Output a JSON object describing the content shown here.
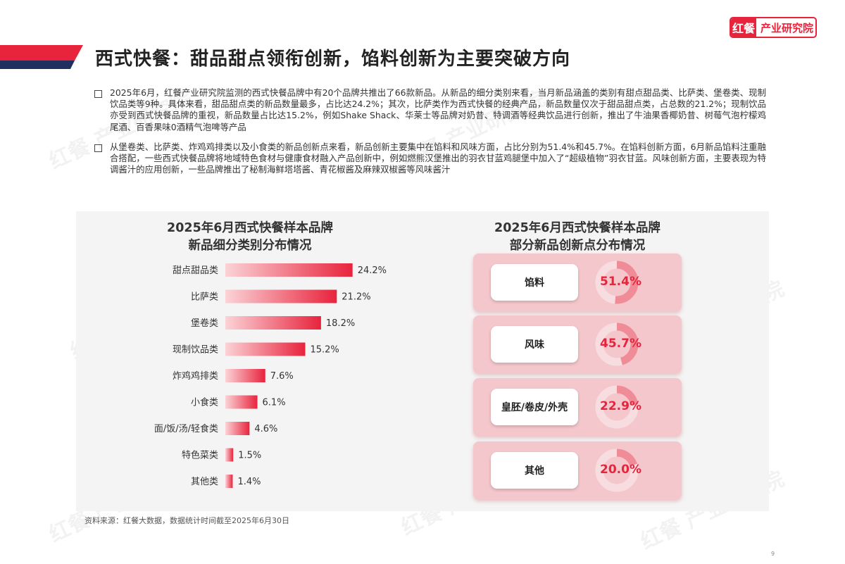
{
  "logo": {
    "mark": "红餐",
    "text": "产业研究院"
  },
  "title": "西式快餐：甜品甜点领衔创新，馅料创新为主要突破方向",
  "bullets": [
    "2025年6月，红餐产业研究院监测的西式快餐品牌中有20个品牌共推出了66款新品。从新品的细分类别来看，当月新品涵盖的类别有甜点甜品类、比萨类、堡卷类、现制饮品类等9种。具体来看，甜品甜点类的新品数量最多，占比达24.2%；其次，比萨类作为西式快餐的经典产品，新品数量仅次于甜品甜点类，占总数的21.2%；现制饮品亦受到西式快餐品牌的重视，新品数量占比达15.2%，例如Shake Shack、华莱士等品牌对奶昔、特调酒等经典饮品进行创新，推出了牛油果香椰奶昔、树莓气泡柠檬鸡尾酒、百香果味0酒精气泡啤等产品",
    "从堡卷类、比萨类、炸鸡鸡排类以及小食类的新品创新点来看，新品创新主要集中在馅料和风味方面，占比分别为51.4%和45.7%。在馅料创新方面，6月新品馅料注重融合搭配，一些西式快餐品牌将地域特色食材与健康食材融入产品创新中，例如燃熊汉堡推出的羽衣甘蓝鸡腿堡中加入了“超级植物”羽衣甘蓝。风味创新方面，主要表现为特调酱汁的应用创新，一些品牌推出了秘制海鲜塔塔酱、青花椒酱及麻辣双椒酱等风味酱汁"
  ],
  "chart_data": [
    {
      "type": "bar",
      "orientation": "horizontal",
      "title": "2025年6月西式快餐样本品牌新品细分类别分布情况",
      "title_lines": [
        "2025年6月西式快餐样本品牌",
        "新品细分类别分布情况"
      ],
      "categories": [
        "甜点甜品类",
        "比萨类",
        "堡卷类",
        "现制饮品类",
        "炸鸡鸡排类",
        "小食类",
        "面/饭/汤/轻食类",
        "特色菜类",
        "其他类"
      ],
      "values": [
        24.2,
        21.2,
        18.2,
        15.2,
        7.6,
        6.1,
        4.6,
        1.5,
        1.4
      ],
      "value_labels": [
        "24.2%",
        "21.2%",
        "18.2%",
        "15.2%",
        "7.6%",
        "6.1%",
        "4.6%",
        "1.5%",
        "1.4%"
      ],
      "xlim": [
        0,
        30
      ],
      "grid": false,
      "color": "#e8233c"
    },
    {
      "type": "pie",
      "style": "donut-gauges",
      "title": "2025年6月西式快餐样本品牌部分新品创新点分布情况",
      "title_lines": [
        "2025年6月西式快餐样本品牌",
        "部分新品创新点分布情况"
      ],
      "categories": [
        "馅料",
        "风味",
        "皇胚/卷皮/外壳",
        "其他"
      ],
      "values": [
        51.4,
        45.7,
        22.9,
        20.0
      ],
      "value_labels": [
        "51.4%",
        "45.7%",
        "22.9%",
        "20.0%"
      ],
      "color": "#e8233c"
    }
  ],
  "source": "资料来源：红餐大数据，数据统计时间截至2025年6月30日",
  "page_number": "9",
  "colors": {
    "accent": "#e8233c",
    "navy": "#1f2f5e",
    "card": "#f4c7cc",
    "panel": "#f4f4f4"
  }
}
